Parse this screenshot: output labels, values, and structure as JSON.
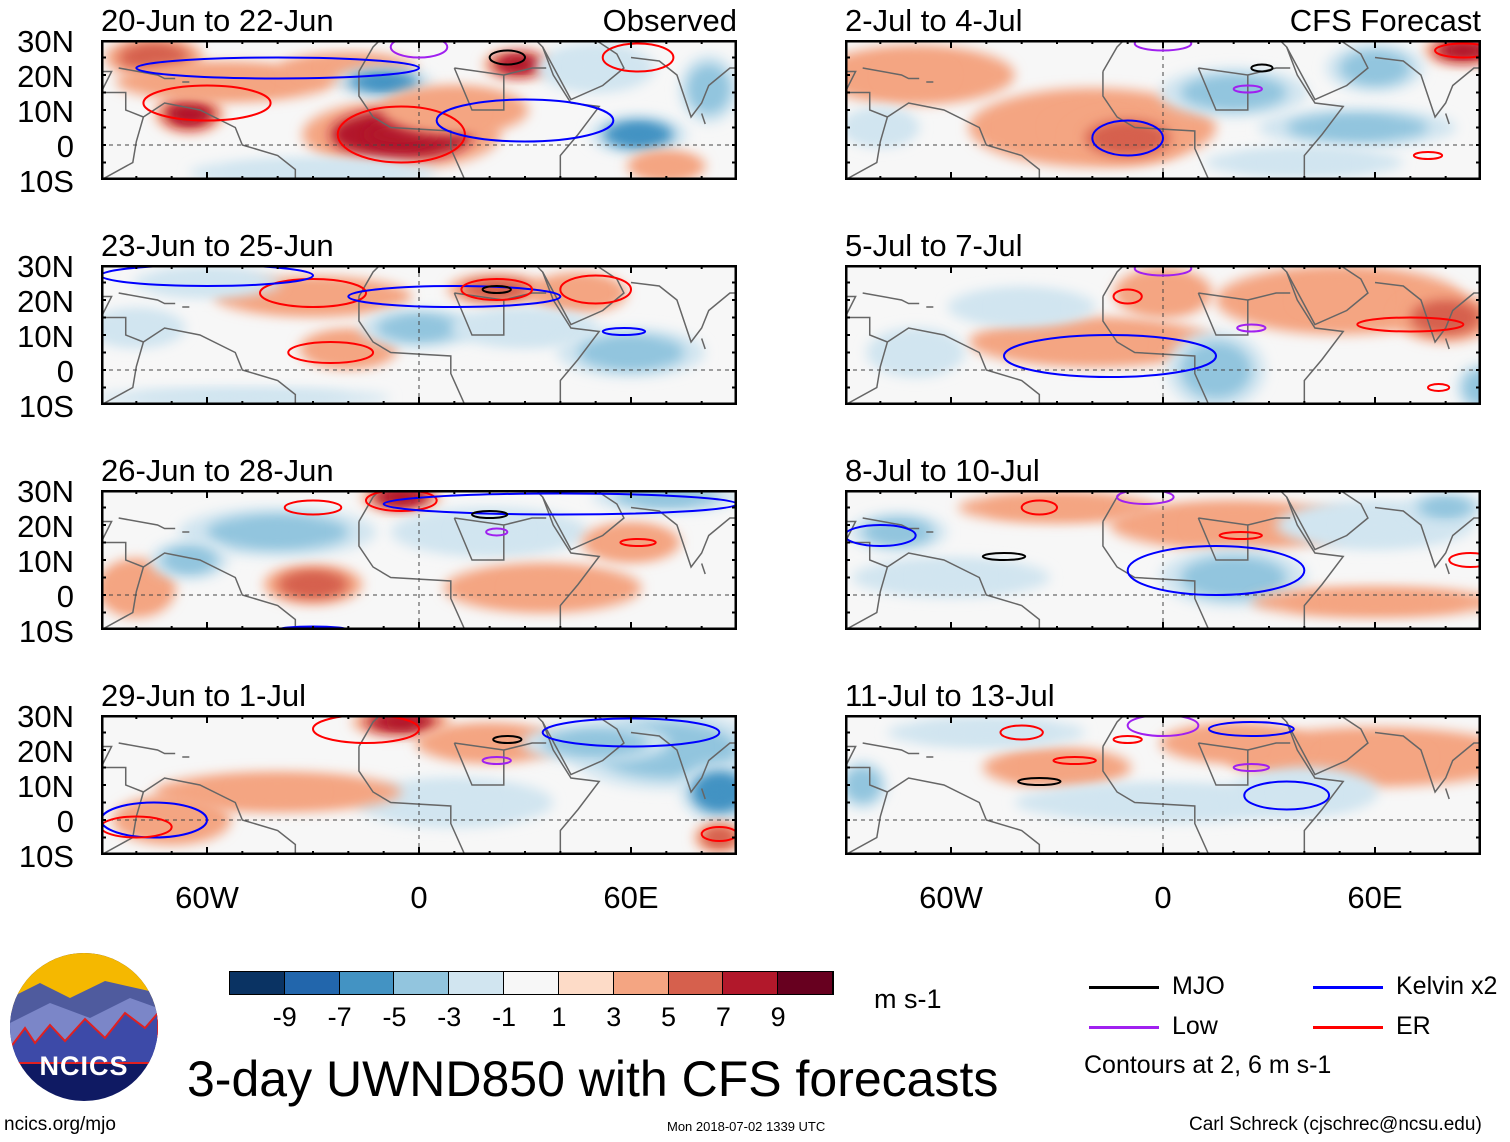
{
  "title": "3-day UWND850 with CFS forecasts",
  "left_header": "Observed",
  "right_header": "CFS Forecast",
  "lat_labels": [
    "30N",
    "20N",
    "10N",
    "0",
    "10S"
  ],
  "lon_labels": [
    "60W",
    "0",
    "60E"
  ],
  "colorbar": {
    "labels": [
      "-9",
      "-7",
      "-5",
      "-3",
      "-1",
      "1",
      "3",
      "5",
      "7",
      "9"
    ],
    "colors": [
      "#0a3363",
      "#2266ac",
      "#4393c3",
      "#92c5de",
      "#d1e5f0",
      "#f7f7f7",
      "#fddbc7",
      "#f4a582",
      "#d6604d",
      "#b2182b",
      "#67001f"
    ],
    "units": "m s-1"
  },
  "legend": {
    "items": [
      {
        "label": "MJO",
        "color": "#000000"
      },
      {
        "label": "Kelvin x2",
        "color": "#0000ff"
      },
      {
        "label": "Low",
        "color": "#a020f0"
      },
      {
        "label": "ER",
        "color": "#ff0000"
      }
    ],
    "note": "Contours at 2, 6 m s-1"
  },
  "logo_text": "NCICS",
  "footer": {
    "left": "ncics.org/mjo",
    "center": "Mon 2018-07-02 1339 UTC",
    "right": "Carl Schreck (cjschrec@ncsu.edu)"
  },
  "chart_data": {
    "type": "heatmap",
    "variable": "850 hPa zonal wind anomaly",
    "units": "m s-1",
    "lon_range": [
      -90,
      90
    ],
    "lat_range": [
      -10,
      30
    ],
    "panels": [
      {
        "title": "20-Jun to 22-Jun",
        "column": "left",
        "anomalies": [
          [
            -75,
            25,
            10,
            4,
            6
          ],
          [
            -65,
            9,
            7,
            4,
            8
          ],
          [
            -5,
            3,
            20,
            7,
            7
          ],
          [
            -55,
            18,
            22,
            4,
            3
          ],
          [
            28,
            23,
            7,
            3,
            7
          ],
          [
            -20,
            22,
            14,
            3,
            4
          ],
          [
            -10,
            18,
            10,
            3,
            -6
          ],
          [
            62,
            3,
            10,
            4,
            -6
          ],
          [
            50,
            22,
            12,
            5,
            -3
          ],
          [
            -30,
            -8,
            25,
            3,
            -3
          ],
          [
            82,
            16,
            6,
            7,
            -4
          ],
          [
            10,
            10,
            15,
            5,
            3
          ],
          [
            70,
            -6,
            8,
            3,
            4
          ]
        ],
        "contours": [
          [
            "ER",
            -5,
            3,
            18,
            8
          ],
          [
            "Kelvin",
            -40,
            22,
            40,
            3
          ],
          [
            "Low",
            0,
            28,
            8,
            3
          ],
          [
            "MJO",
            25,
            25,
            5,
            2
          ],
          [
            "Kelvin",
            30,
            7,
            25,
            6
          ],
          [
            "ER",
            -60,
            12,
            18,
            5
          ],
          [
            "ER",
            62,
            25,
            10,
            4
          ]
        ]
      },
      {
        "title": "2-Jul to 4-Jul",
        "column": "right",
        "anomalies": [
          [
            -70,
            20,
            20,
            6,
            3
          ],
          [
            -20,
            5,
            25,
            8,
            3
          ],
          [
            -10,
            2,
            12,
            5,
            5
          ],
          [
            55,
            5,
            20,
            4,
            -5
          ],
          [
            20,
            15,
            15,
            5,
            -4
          ],
          [
            85,
            27,
            8,
            3,
            8
          ],
          [
            60,
            22,
            10,
            5,
            -4
          ],
          [
            -80,
            5,
            8,
            4,
            -3
          ],
          [
            40,
            -5,
            20,
            3,
            -3
          ]
        ],
        "contours": [
          [
            "Kelvin",
            -10,
            2,
            10,
            5
          ],
          [
            "Low",
            0,
            29,
            8,
            2
          ],
          [
            "Low",
            24,
            16,
            4,
            1
          ],
          [
            "ER",
            85,
            27,
            8,
            2
          ],
          [
            "MJO",
            28,
            22,
            3,
            1
          ],
          [
            "ER",
            75,
            -3,
            4,
            1
          ]
        ]
      },
      {
        "title": "23-Jun to 25-Jun",
        "column": "left",
        "anomalies": [
          [
            -30,
            21,
            20,
            4,
            4
          ],
          [
            22,
            23,
            10,
            3,
            6
          ],
          [
            45,
            22,
            10,
            4,
            4
          ],
          [
            -20,
            6,
            10,
            4,
            4
          ],
          [
            -60,
            25,
            15,
            3,
            -3
          ],
          [
            0,
            12,
            12,
            4,
            -4
          ],
          [
            30,
            12,
            15,
            4,
            -3
          ],
          [
            60,
            5,
            15,
            5,
            -4
          ],
          [
            -50,
            -8,
            30,
            2,
            -3
          ],
          [
            -80,
            12,
            10,
            4,
            -3
          ]
        ],
        "contours": [
          [
            "ER",
            -30,
            22,
            15,
            4
          ],
          [
            "ER",
            -25,
            5,
            12,
            3
          ],
          [
            "Kelvin",
            -60,
            27,
            30,
            3
          ],
          [
            "Kelvin",
            10,
            21,
            30,
            3
          ],
          [
            "ER",
            22,
            23,
            10,
            3
          ],
          [
            "ER",
            50,
            23,
            10,
            4
          ],
          [
            "MJO",
            22,
            23,
            4,
            1
          ],
          [
            "Kelvin",
            58,
            11,
            6,
            1
          ]
        ]
      },
      {
        "title": "5-Jul to 7-Jul",
        "column": "right",
        "anomalies": [
          [
            50,
            20,
            25,
            7,
            4
          ],
          [
            80,
            15,
            10,
            5,
            5
          ],
          [
            -20,
            8,
            25,
            5,
            3
          ],
          [
            15,
            0,
            10,
            8,
            -5
          ],
          [
            -40,
            18,
            15,
            4,
            -3
          ],
          [
            -70,
            5,
            10,
            5,
            -3
          ],
          [
            0,
            22,
            10,
            5,
            3
          ],
          [
            90,
            -5,
            5,
            5,
            -5
          ]
        ],
        "contours": [
          [
            "Kelvin",
            -15,
            4,
            30,
            6
          ],
          [
            "Low",
            0,
            29,
            8,
            2
          ],
          [
            "Low",
            25,
            12,
            4,
            1
          ],
          [
            "ER",
            -10,
            21,
            4,
            2
          ],
          [
            "ER",
            70,
            13,
            15,
            2
          ],
          [
            "ER",
            78,
            -5,
            3,
            1
          ]
        ]
      },
      {
        "title": "26-Jun to 28-Jun",
        "column": "left",
        "anomalies": [
          [
            -5,
            28,
            8,
            3,
            8
          ],
          [
            -30,
            3,
            10,
            4,
            5
          ],
          [
            -80,
            2,
            8,
            6,
            4
          ],
          [
            -40,
            18,
            20,
            5,
            -4
          ],
          [
            20,
            18,
            20,
            5,
            -3
          ],
          [
            70,
            28,
            15,
            3,
            -5
          ],
          [
            -65,
            10,
            8,
            4,
            -4
          ],
          [
            35,
            2,
            20,
            5,
            3
          ],
          [
            60,
            15,
            10,
            4,
            4
          ]
        ],
        "contours": [
          [
            "ER",
            -5,
            27,
            10,
            3
          ],
          [
            "ER",
            -30,
            25,
            8,
            2
          ],
          [
            "Kelvin",
            40,
            26,
            50,
            3
          ],
          [
            "MJO",
            20,
            23,
            5,
            1
          ],
          [
            "Low",
            22,
            18,
            3,
            1
          ],
          [
            "ER",
            62,
            15,
            5,
            1
          ],
          [
            "Kelvin",
            -30,
            -10,
            10,
            1
          ]
        ]
      },
      {
        "title": "8-Jul to 10-Jul",
        "column": "right",
        "anomalies": [
          [
            -75,
            18,
            10,
            4,
            -4
          ],
          [
            -30,
            25,
            20,
            3,
            3
          ],
          [
            20,
            20,
            25,
            5,
            3
          ],
          [
            20,
            5,
            15,
            6,
            -4
          ],
          [
            60,
            20,
            20,
            5,
            -3
          ],
          [
            80,
            25,
            8,
            3,
            -5
          ],
          [
            -60,
            5,
            20,
            4,
            -3
          ],
          [
            60,
            -2,
            25,
            3,
            3
          ]
        ],
        "contours": [
          [
            "Kelvin",
            -80,
            17,
            10,
            3
          ],
          [
            "ER",
            -35,
            25,
            5,
            2
          ],
          [
            "Low",
            -5,
            28,
            8,
            2
          ],
          [
            "Kelvin",
            15,
            7,
            25,
            7
          ],
          [
            "MJO",
            -45,
            11,
            6,
            1
          ],
          [
            "ER",
            22,
            17,
            6,
            1
          ],
          [
            "ER",
            87,
            10,
            6,
            2
          ]
        ]
      },
      {
        "title": "29-Jun to 1-Jul",
        "column": "left",
        "anomalies": [
          [
            -5,
            28,
            10,
            3,
            8
          ],
          [
            -70,
            0,
            12,
            5,
            4
          ],
          [
            20,
            22,
            15,
            4,
            3
          ],
          [
            70,
            20,
            20,
            8,
            -5
          ],
          [
            85,
            8,
            8,
            6,
            -6
          ],
          [
            50,
            22,
            15,
            4,
            -4
          ],
          [
            10,
            5,
            20,
            5,
            -3
          ],
          [
            -40,
            8,
            25,
            4,
            3
          ],
          [
            85,
            -5,
            5,
            3,
            5
          ]
        ],
        "contours": [
          [
            "ER",
            -15,
            26,
            15,
            4
          ],
          [
            "MJO",
            25,
            23,
            4,
            1
          ],
          [
            "Low",
            22,
            17,
            4,
            1
          ],
          [
            "Kelvin",
            60,
            25,
            25,
            4
          ],
          [
            "Kelvin",
            -75,
            0,
            15,
            5
          ],
          [
            "ER",
            -80,
            -2,
            10,
            3
          ],
          [
            "ER",
            85,
            -4,
            5,
            2
          ]
        ]
      },
      {
        "title": "11-Jul to 13-Jul",
        "column": "right",
        "anomalies": [
          [
            -30,
            15,
            15,
            4,
            4
          ],
          [
            60,
            18,
            30,
            6,
            3
          ],
          [
            -85,
            10,
            5,
            5,
            -5
          ],
          [
            0,
            5,
            30,
            4,
            -3
          ],
          [
            40,
            8,
            15,
            5,
            -3
          ],
          [
            -50,
            25,
            20,
            3,
            -3
          ],
          [
            20,
            22,
            15,
            4,
            3
          ]
        ],
        "contours": [
          [
            "Low",
            0,
            27,
            10,
            3
          ],
          [
            "Kelvin",
            25,
            26,
            12,
            2
          ],
          [
            "ER",
            -40,
            25,
            6,
            2
          ],
          [
            "ER",
            -25,
            17,
            6,
            1
          ],
          [
            "MJO",
            -35,
            11,
            6,
            1
          ],
          [
            "Low",
            25,
            15,
            5,
            1
          ],
          [
            "Kelvin",
            35,
            7,
            12,
            4
          ],
          [
            "ER",
            -10,
            23,
            4,
            1
          ]
        ]
      }
    ]
  }
}
